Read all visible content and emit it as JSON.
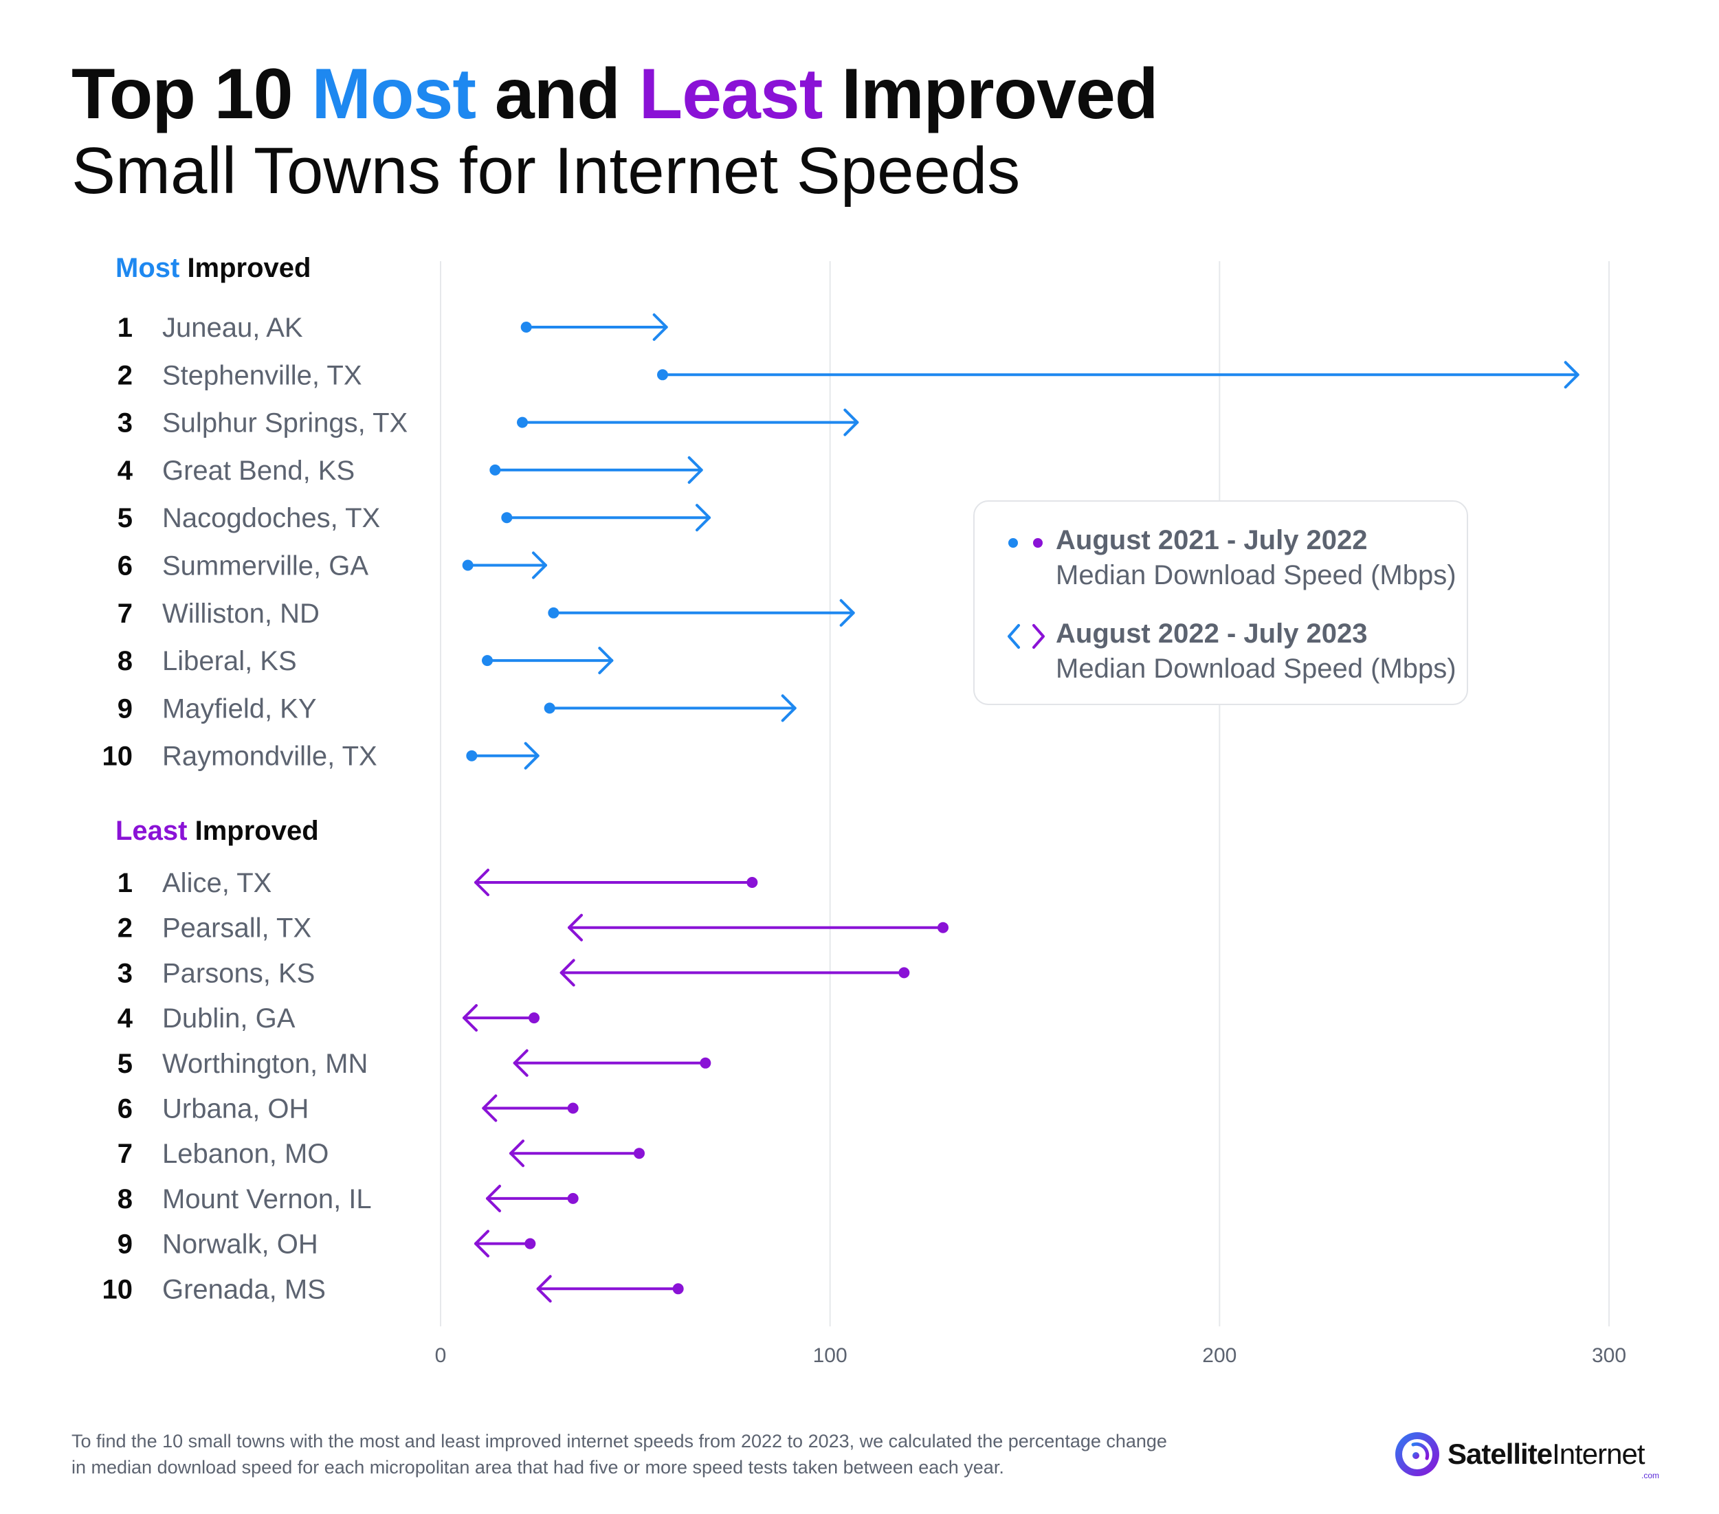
{
  "title": {
    "prefix": "Top 10 ",
    "most": "Most",
    "middle": " and ",
    "least": "Least",
    "suffix": " Improved",
    "line2": "Small Towns for Internet Speeds"
  },
  "colors": {
    "most": "#1e88f0",
    "least": "#8a12d6",
    "text_dark": "#0b0b0b",
    "text_gray": "#5c6370",
    "grid": "#e6e8eb"
  },
  "legend": {
    "period1": "August 2021 - July 2022",
    "metric1": "Median Download Speed (Mbps)",
    "period2": "August 2022 - July 2023",
    "metric2": "Median Download Speed (Mbps)",
    "placement": "right-middle"
  },
  "footnote": "To find the 10 small towns with the most and least improved internet speeds from 2022 to 2023, we calculated the percentage change in median download speed for each micropolitan area that had five or more speed tests taken between each year.",
  "brand": {
    "bold": "Satellite",
    "normal": "Internet",
    "tld": ".com",
    "icon": "satellite-signal-icon"
  },
  "chart_data": {
    "type": "dumbbell-arrow",
    "xlim": [
      0,
      300
    ],
    "xticks": [
      0,
      100,
      200,
      300
    ],
    "grid": true,
    "groups": [
      {
        "title_accent": "Most",
        "title_rest": " Improved",
        "color": "#1e88f0",
        "rows": [
          {
            "rank": "1",
            "town": "Juneau, AK",
            "start": 22,
            "end": 58
          },
          {
            "rank": "2",
            "town": "Stephenville, TX",
            "start": 57,
            "end": 292
          },
          {
            "rank": "3",
            "town": "Sulphur Springs, TX",
            "start": 21,
            "end": 107
          },
          {
            "rank": "4",
            "town": "Great Bend, KS",
            "start": 14,
            "end": 67
          },
          {
            "rank": "5",
            "town": "Nacogdoches, TX",
            "start": 17,
            "end": 69
          },
          {
            "rank": "6",
            "town": "Summerville, GA",
            "start": 7,
            "end": 27
          },
          {
            "rank": "7",
            "town": "Williston, ND",
            "start": 29,
            "end": 106
          },
          {
            "rank": "8",
            "town": "Liberal, KS",
            "start": 12,
            "end": 44
          },
          {
            "rank": "9",
            "town": "Mayfield, KY",
            "start": 28,
            "end": 91
          },
          {
            "rank": "10",
            "town": "Raymondville, TX",
            "start": 8,
            "end": 25
          }
        ]
      },
      {
        "title_accent": "Least",
        "title_rest": " Improved",
        "color": "#8a12d6",
        "rows": [
          {
            "rank": "1",
            "town": "Alice, TX",
            "start": 80,
            "end": 9
          },
          {
            "rank": "2",
            "town": "Pearsall, TX",
            "start": 129,
            "end": 33
          },
          {
            "rank": "3",
            "town": "Parsons, KS",
            "start": 119,
            "end": 31
          },
          {
            "rank": "4",
            "town": "Dublin, GA",
            "start": 24,
            "end": 6
          },
          {
            "rank": "5",
            "town": "Worthington, MN",
            "start": 68,
            "end": 19
          },
          {
            "rank": "6",
            "town": "Urbana, OH",
            "start": 34,
            "end": 11
          },
          {
            "rank": "7",
            "town": "Lebanon, MO",
            "start": 51,
            "end": 18
          },
          {
            "rank": "8",
            "town": "Mount Vernon, IL",
            "start": 34,
            "end": 12
          },
          {
            "rank": "9",
            "town": "Norwalk, OH",
            "start": 23,
            "end": 9
          },
          {
            "rank": "10",
            "town": "Grenada, MS",
            "start": 61,
            "end": 25
          }
        ]
      }
    ]
  }
}
